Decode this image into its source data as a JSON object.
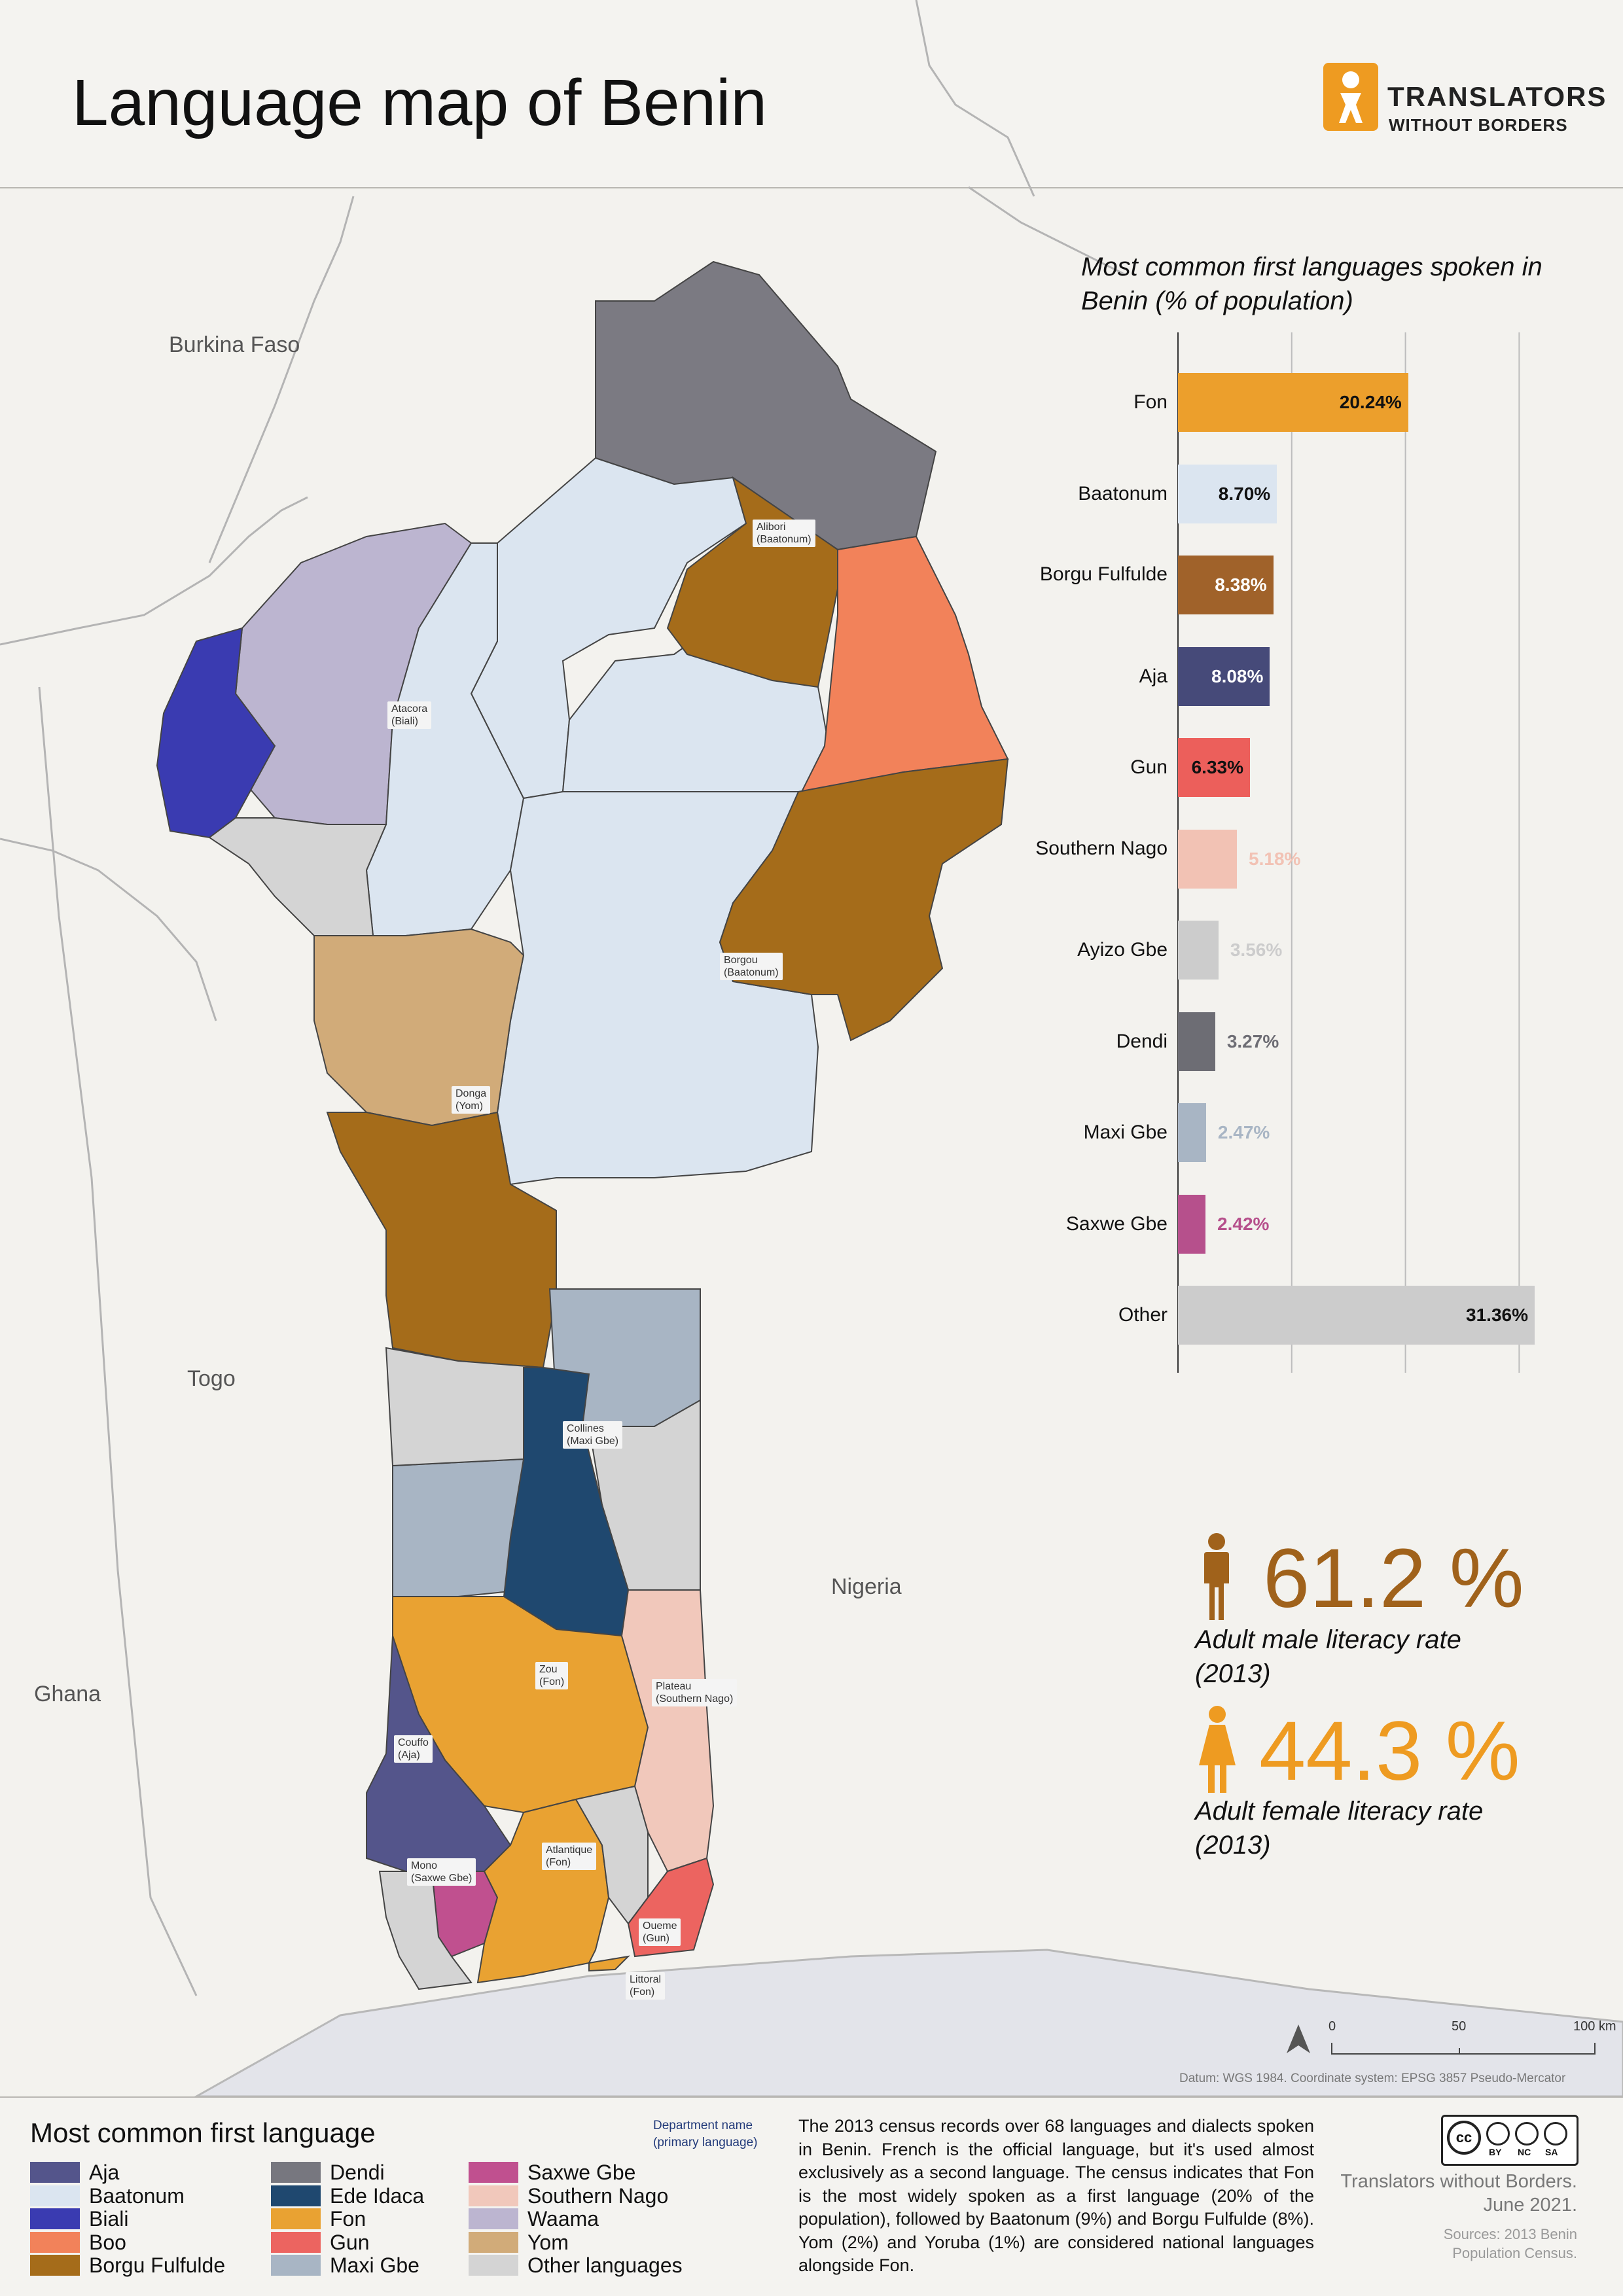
{
  "title": "Language map of Benin",
  "logo": {
    "line1": "TRANSLATORS",
    "line2": "WITHOUT BORDERS",
    "icon": "translators-logo-icon",
    "color": "#ee9b21"
  },
  "countries": [
    {
      "name": "Burkina Faso"
    },
    {
      "name": "Togo"
    },
    {
      "name": "Nigeria"
    },
    {
      "name": "Ghana"
    }
  ],
  "departments": [
    {
      "name": "Alibori",
      "language": "(Baatonum)"
    },
    {
      "name": "Atacora",
      "language": "(Biali)"
    },
    {
      "name": "Borgou",
      "language": "(Baatonum)"
    },
    {
      "name": "Donga",
      "language": "(Yom)"
    },
    {
      "name": "Collines",
      "language": "(Maxi Gbe)"
    },
    {
      "name": "Zou",
      "language": "(Fon)"
    },
    {
      "name": "Plateau",
      "language": "(Southern Nago)"
    },
    {
      "name": "Couffo",
      "language": "(Aja)"
    },
    {
      "name": "Mono",
      "language": "(Saxwe Gbe)"
    },
    {
      "name": "Atlantique",
      "language": "(Fon)"
    },
    {
      "name": "Oueme",
      "language": "(Gun)"
    },
    {
      "name": "Littoral",
      "language": "(Fon)"
    }
  ],
  "chart_data": {
    "type": "bar",
    "orientation": "horizontal",
    "title": "Most common first languages spoken in Benin (% of population)",
    "categories": [
      "Fon",
      "Baatonum",
      "Borgu Fulfulde",
      "Aja",
      "Gun",
      "Southern Nago",
      "Ayizo Gbe",
      "Dendi",
      "Maxi Gbe",
      "Saxwe Gbe",
      "Other"
    ],
    "values": [
      20.24,
      8.7,
      8.38,
      8.08,
      6.33,
      5.18,
      3.56,
      3.27,
      2.47,
      2.42,
      31.36
    ],
    "value_labels": [
      "20.24%",
      "8.70%",
      "8.38%",
      "8.08%",
      "6.33%",
      "5.18%",
      "3.56%",
      "3.27%",
      "2.47%",
      "2.42%",
      "31.36%"
    ],
    "colors": [
      "#ec9f2c",
      "#dbe5f0",
      "#a0622a",
      "#464a79",
      "#ec5f5b",
      "#f2c2b4",
      "#cccccc",
      "#6d6d74",
      "#a8b5c4",
      "#b6508c",
      "#cccccc"
    ],
    "label_colors": [
      "#111111",
      "#111111",
      "#ffffff",
      "#ffffff",
      "#111111",
      "#f2c2b4",
      "#cccccc",
      "#6d6d74",
      "#a8b5c4",
      "#b6508c",
      "#111111"
    ],
    "xlim": [
      0,
      31.36
    ],
    "grid": true
  },
  "stats": {
    "male_value": "61.2 %",
    "male_label_line1": "Adult male literacy rate",
    "male_label_line2": "(2013)",
    "female_value": "44.3 %",
    "female_label_line1": "Adult female literacy rate",
    "female_label_line2": "(2013)",
    "male_color": "#a0621b",
    "female_color": "#ee9b21"
  },
  "scale": {
    "labels": [
      "0",
      "50",
      "100 km"
    ]
  },
  "datum": "Datum: WGS 1984. Coordinate system: EPSG 3857 Pseudo-Mercator",
  "legend": {
    "title": "Most common first language",
    "dept_key_line1": "Department name",
    "dept_key_line2": "(primary language)",
    "items": [
      {
        "label": "Aja",
        "color": "#54558b"
      },
      {
        "label": "Baatonum",
        "color": "#dbe5f0"
      },
      {
        "label": "Biali",
        "color": "#3a3bb1"
      },
      {
        "label": "Boo",
        "color": "#f2825a"
      },
      {
        "label": "Borgu Fulfulde",
        "color": "#a56c1a"
      },
      {
        "label": "Dendi",
        "color": "#77777f"
      },
      {
        "label": "Ede Idaca",
        "color": "#1f486f"
      },
      {
        "label": "Fon",
        "color": "#e9a232"
      },
      {
        "label": "Gun",
        "color": "#ec6460"
      },
      {
        "label": "Maxi Gbe",
        "color": "#a8b5c4"
      },
      {
        "label": "Saxwe Gbe",
        "color": "#c0508f"
      },
      {
        "label": "Southern Nago",
        "color": "#f1c8bb"
      },
      {
        "label": "Waama",
        "color": "#bcb5d0"
      },
      {
        "label": "Yom",
        "color": "#d1ab79"
      },
      {
        "label": "Other languages",
        "color": "#d4d4d4"
      }
    ]
  },
  "description": "The 2013 census records over 68 languages and dialects spoken in Benin. French is the official language, but it's used almost exclusively as a second language. The census indicates that Fon is the most widely spoken as a first language (20% of the population), followed by Baatonum (9%) and Borgu Fulfulde (8%). Yom (2%) and Yoruba (1%) are considered national languages alongside Fon.",
  "license": {
    "cc": "cc",
    "tags": [
      "BY",
      "NC",
      "SA"
    ]
  },
  "credit_line1": "Translators without Borders.",
  "credit_line2": "June 2021.",
  "sources_line1": "Sources: 2013 Benin",
  "sources_line2": "Population Census."
}
